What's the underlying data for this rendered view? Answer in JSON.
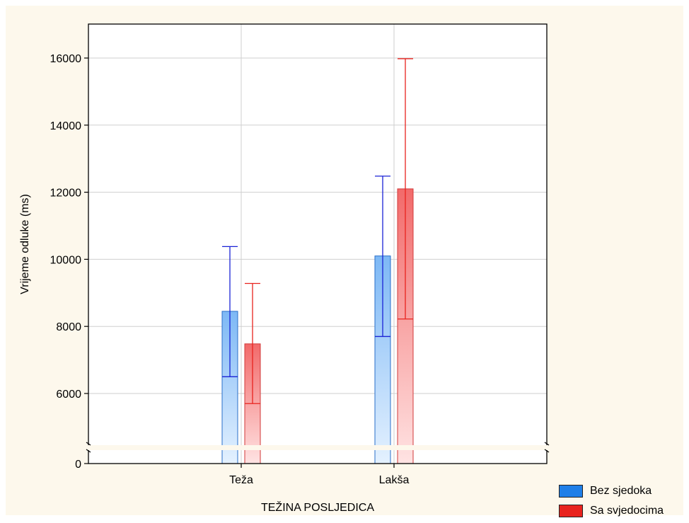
{
  "chart_data": {
    "type": "bar",
    "xlabel": "TEŽINA POSLJEDICA",
    "ylabel": "Vrijeme odluke (ms)",
    "categories": [
      "Teža",
      "Lakša"
    ],
    "series": [
      {
        "name": "Bez sjedoka",
        "values": [
          8450,
          10100
        ],
        "error_low": [
          6500,
          7700
        ],
        "error_high": [
          10380,
          12480
        ],
        "color": "#1f7fe8"
      },
      {
        "name": "Sa svjedocima",
        "values": [
          7480,
          12100
        ],
        "error_low": [
          5700,
          8220
        ],
        "error_high": [
          9280,
          15980
        ],
        "color": "#e8231e"
      }
    ],
    "yticks": [
      0,
      6000,
      8000,
      10000,
      12000,
      14000,
      16000
    ],
    "ylim": [
      0,
      17000
    ],
    "axis_break": true,
    "grid": true,
    "legend_position": "bottom-right",
    "background": "#fdf8ec"
  }
}
